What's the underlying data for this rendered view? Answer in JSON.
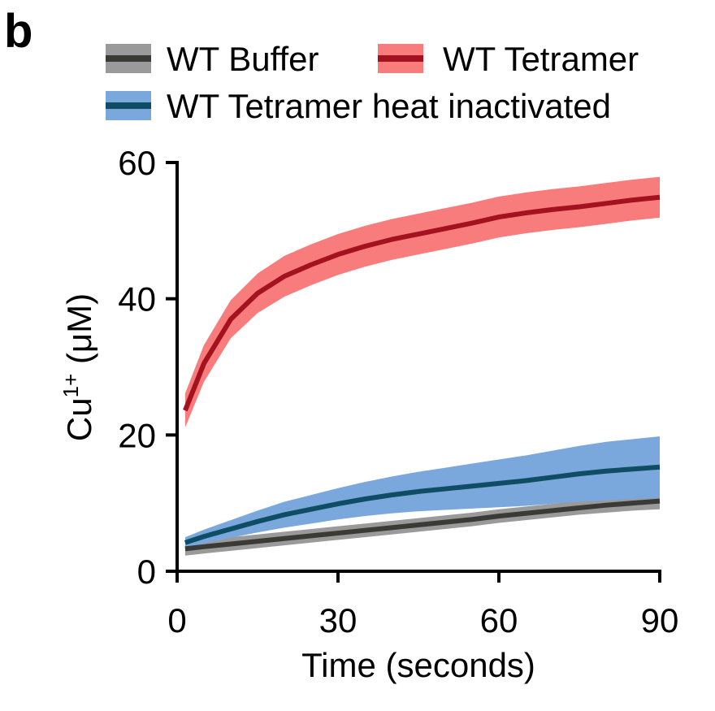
{
  "panel_label": "b",
  "chart_data": {
    "type": "line",
    "title": "",
    "xlabel": "Time (seconds)",
    "ylabel_main": "Cu",
    "ylabel_sup": "1+",
    "ylabel_unit": " (μM)",
    "xlim": [
      0,
      90
    ],
    "ylim": [
      0,
      60
    ],
    "xticks": [
      0,
      30,
      60,
      90
    ],
    "yticks": [
      0,
      20,
      40,
      60
    ],
    "grid": false,
    "legend_placement": "top",
    "series": [
      {
        "name": "WT Buffer",
        "line_color": "#3a3a36",
        "band_color": "#9a9a9a",
        "x": [
          1.5,
          5,
          10,
          15,
          20,
          25,
          30,
          35,
          40,
          45,
          50,
          55,
          60,
          65,
          70,
          75,
          80,
          85,
          90
        ],
        "y": [
          3.3,
          3.6,
          4.0,
          4.4,
          4.8,
          5.2,
          5.6,
          6.0,
          6.4,
          6.8,
          7.2,
          7.6,
          8.1,
          8.5,
          8.9,
          9.3,
          9.7,
          10.0,
          10.3
        ],
        "err": [
          1,
          1,
          1,
          1,
          1,
          1,
          1,
          1,
          1,
          1,
          1,
          1,
          1,
          1,
          1,
          1,
          1.1,
          1.1,
          1.2
        ]
      },
      {
        "name": "WT Tetramer",
        "line_color": "#a3121e",
        "band_color": "#f87c7c",
        "x": [
          1.5,
          5,
          10,
          15,
          20,
          25,
          30,
          35,
          40,
          45,
          50,
          55,
          60,
          65,
          70,
          75,
          80,
          85,
          90
        ],
        "y": [
          23.6,
          30.5,
          37.0,
          40.8,
          43.3,
          45.0,
          46.5,
          47.7,
          48.7,
          49.5,
          50.3,
          51.1,
          52.0,
          52.6,
          53.1,
          53.5,
          54.0,
          54.5,
          54.9
        ],
        "err": [
          2.5,
          2.7,
          2.8,
          2.9,
          3,
          3,
          3,
          3,
          3,
          3,
          3,
          3,
          3,
          3,
          3,
          3,
          3,
          3,
          3
        ]
      },
      {
        "name": "WT Tetramer heat inactivated",
        "line_color": "#0e4d64",
        "band_color": "#7aa8dc",
        "x": [
          1.5,
          5,
          10,
          15,
          20,
          25,
          30,
          35,
          40,
          45,
          50,
          55,
          60,
          65,
          70,
          75,
          80,
          85,
          90
        ],
        "y": [
          4.2,
          5.1,
          6.2,
          7.3,
          8.3,
          9.1,
          9.9,
          10.6,
          11.2,
          11.7,
          12.1,
          12.5,
          12.9,
          13.3,
          13.8,
          14.3,
          14.7,
          15.0,
          15.3
        ],
        "err": [
          0.8,
          1.0,
          1.3,
          1.6,
          1.9,
          2.1,
          2.3,
          2.5,
          2.7,
          2.9,
          3.1,
          3.3,
          3.5,
          3.7,
          3.9,
          4.1,
          4.3,
          4.4,
          4.5
        ]
      }
    ]
  }
}
